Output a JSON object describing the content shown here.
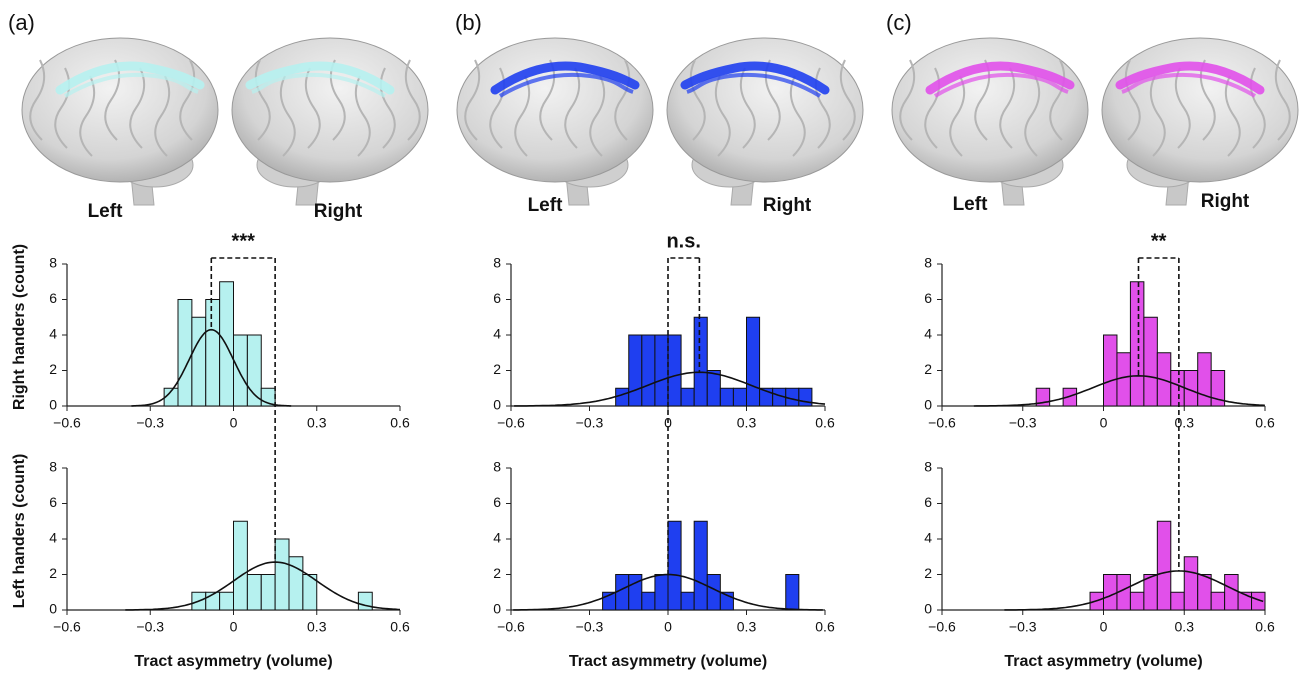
{
  "panels": [
    {
      "label": "(a)",
      "brain_labels": [
        "Left",
        "Right"
      ],
      "significance": "***"
    },
    {
      "label": "(b)",
      "brain_labels": [
        "Left",
        "Right"
      ],
      "significance": "n.s."
    },
    {
      "label": "(c)",
      "brain_labels": [
        "Left",
        "Right"
      ],
      "significance": "**"
    }
  ],
  "chart_data": [
    {
      "type": "histogram",
      "ylabel": "Right handers (count)",
      "color": "#b6f1ef",
      "bins": [
        -0.25,
        -0.2,
        -0.15,
        -0.1,
        -0.05,
        0,
        0.05,
        0.1,
        0.15
      ],
      "counts": [
        1,
        6,
        5,
        6,
        7,
        4,
        4,
        1
      ],
      "fit": {
        "mean": -0.08,
        "sd": 0.08,
        "peak": 4.3
      },
      "xlim": [
        -0.6,
        0.6
      ],
      "xticks": [
        {
          "value": -0.6,
          "label": "−0.6"
        },
        {
          "value": -0.3,
          "label": "−0.3"
        },
        0,
        0.3,
        0.6
      ],
      "ylim": [
        0,
        8
      ],
      "yticks": [
        0,
        2,
        4,
        6,
        8
      ]
    },
    {
      "type": "histogram",
      "ylabel": "Left handers (count)",
      "xlabel": "Tract asymmetry (volume)",
      "color": "#b6f1ef",
      "bins": [
        -0.15,
        -0.1,
        -0.05,
        0,
        0.05,
        0.1,
        0.15,
        0.2,
        0.25,
        0.3,
        0.35,
        0.4,
        0.45,
        0.5
      ],
      "counts": [
        1,
        1,
        1,
        5,
        2,
        2,
        4,
        3,
        2,
        0,
        0,
        0,
        1
      ],
      "fit": {
        "mean": 0.15,
        "sd": 0.15,
        "peak": 2.7
      },
      "xlim": [
        -0.6,
        0.6
      ],
      "xticks": [
        {
          "value": -0.6,
          "label": "−0.6"
        },
        {
          "value": -0.3,
          "label": "−0.3"
        },
        0,
        0.3,
        0.6
      ],
      "ylim": [
        0,
        8
      ],
      "yticks": [
        0,
        2,
        4,
        6,
        8
      ]
    },
    {
      "type": "histogram",
      "color": "#1f3ff0",
      "bins": [
        -0.2,
        -0.15,
        -0.1,
        -0.05,
        0,
        0.05,
        0.1,
        0.15,
        0.2,
        0.25,
        0.3,
        0.35,
        0.4,
        0.45,
        0.5,
        0.55
      ],
      "counts": [
        1,
        4,
        4,
        4,
        4,
        1,
        5,
        2,
        1,
        1,
        5,
        1,
        1,
        1,
        1
      ],
      "fit": {
        "mean": 0.12,
        "sd": 0.2,
        "peak": 1.9
      },
      "xlim": [
        -0.6,
        0.6
      ],
      "xticks": [
        {
          "value": -0.6,
          "label": "−0.6"
        },
        {
          "value": -0.3,
          "label": "−0.3"
        },
        0,
        0.3,
        0.6
      ],
      "ylim": [
        0,
        8
      ],
      "yticks": [
        0,
        2,
        4,
        6,
        8
      ]
    },
    {
      "type": "histogram",
      "xlabel": "Tract asymmetry (volume)",
      "color": "#1f3ff0",
      "bins": [
        -0.25,
        -0.2,
        -0.15,
        -0.1,
        -0.05,
        0,
        0.05,
        0.1,
        0.15,
        0.2,
        0.25,
        0.3,
        0.35,
        0.4,
        0.45,
        0.5
      ],
      "counts": [
        1,
        2,
        2,
        1,
        2,
        5,
        1,
        5,
        2,
        1,
        0,
        0,
        0,
        0,
        2
      ],
      "fit": {
        "mean": 0,
        "sd": 0.17,
        "peak": 2.0
      },
      "xlim": [
        -0.6,
        0.6
      ],
      "xticks": [
        {
          "value": -0.6,
          "label": "−0.6"
        },
        {
          "value": -0.3,
          "label": "−0.3"
        },
        0,
        0.3,
        0.6
      ],
      "ylim": [
        0,
        8
      ],
      "yticks": [
        0,
        2,
        4,
        6,
        8
      ]
    },
    {
      "type": "histogram",
      "color": "#e150ea",
      "bins": [
        -0.25,
        -0.2,
        -0.15,
        -0.1,
        -0.05,
        0,
        0.05,
        0.1,
        0.15,
        0.2,
        0.25,
        0.3,
        0.35,
        0.4,
        0.45
      ],
      "counts": [
        1,
        0,
        1,
        0,
        0,
        4,
        3,
        7,
        5,
        3,
        2,
        2,
        3,
        2
      ],
      "fit": {
        "mean": 0.13,
        "sd": 0.17,
        "peak": 1.7
      },
      "xlim": [
        -0.6,
        0.6
      ],
      "xticks": [
        {
          "value": -0.6,
          "label": "−0.6"
        },
        {
          "value": -0.3,
          "label": "−0.3"
        },
        0,
        0.3,
        0.6
      ],
      "ylim": [
        0,
        8
      ],
      "yticks": [
        0,
        2,
        4,
        6,
        8
      ]
    },
    {
      "type": "histogram",
      "xlabel": "Tract asymmetry (volume)",
      "color": "#e150ea",
      "bins": [
        -0.05,
        0,
        0.05,
        0.1,
        0.15,
        0.2,
        0.25,
        0.3,
        0.35,
        0.4,
        0.45,
        0.5,
        0.55,
        0.6
      ],
      "counts": [
        1,
        2,
        2,
        1,
        2,
        5,
        1,
        3,
        2,
        1,
        2,
        1,
        1
      ],
      "fit": {
        "mean": 0.28,
        "sd": 0.18,
        "peak": 2.2
      },
      "xlim": [
        -0.6,
        0.6
      ],
      "xticks": [
        {
          "value": -0.6,
          "label": "−0.6"
        },
        {
          "value": -0.3,
          "label": "−0.3"
        },
        0,
        0.3,
        0.6
      ],
      "ylim": [
        0,
        8
      ],
      "yticks": [
        0,
        2,
        4,
        6,
        8
      ]
    }
  ]
}
